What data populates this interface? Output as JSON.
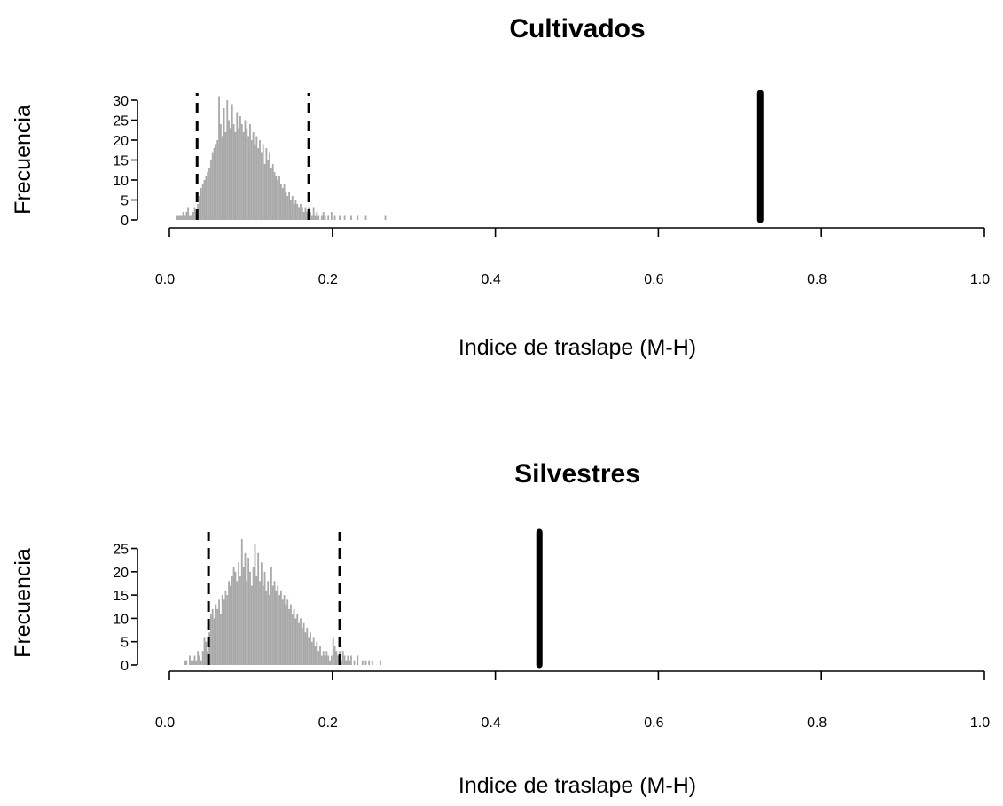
{
  "chart_data": [
    {
      "type": "bar",
      "title": "Cultivados",
      "xlabel": "Indice de traslape (M-H)",
      "ylabel": "Frecuencia",
      "xlim": [
        0,
        1
      ],
      "ylim": [
        0,
        30
      ],
      "xticks": [
        "0.0",
        "0.2",
        "0.4",
        "0.6",
        "0.8",
        "1.0"
      ],
      "yticks": [
        "0",
        "5",
        "10",
        "15",
        "20",
        "25",
        "30"
      ],
      "bin_width": 0.002,
      "bins": [
        [
          0.008,
          1
        ],
        [
          0.01,
          1
        ],
        [
          0.012,
          1
        ],
        [
          0.014,
          1
        ],
        [
          0.016,
          2
        ],
        [
          0.018,
          1
        ],
        [
          0.02,
          2
        ],
        [
          0.022,
          3
        ],
        [
          0.024,
          1
        ],
        [
          0.026,
          1
        ],
        [
          0.028,
          2
        ],
        [
          0.03,
          3
        ],
        [
          0.032,
          2
        ],
        [
          0.034,
          4
        ],
        [
          0.036,
          6
        ],
        [
          0.038,
          8
        ],
        [
          0.04,
          9
        ],
        [
          0.042,
          10
        ],
        [
          0.044,
          11
        ],
        [
          0.046,
          12
        ],
        [
          0.048,
          13
        ],
        [
          0.05,
          15
        ],
        [
          0.052,
          17
        ],
        [
          0.054,
          18
        ],
        [
          0.056,
          19
        ],
        [
          0.058,
          20
        ],
        [
          0.06,
          31
        ],
        [
          0.062,
          24
        ],
        [
          0.064,
          21
        ],
        [
          0.066,
          28
        ],
        [
          0.068,
          22
        ],
        [
          0.07,
          30
        ],
        [
          0.072,
          25
        ],
        [
          0.074,
          23
        ],
        [
          0.076,
          29
        ],
        [
          0.078,
          24
        ],
        [
          0.08,
          22
        ],
        [
          0.082,
          27
        ],
        [
          0.084,
          23
        ],
        [
          0.086,
          26
        ],
        [
          0.088,
          24
        ],
        [
          0.09,
          22
        ],
        [
          0.092,
          25
        ],
        [
          0.094,
          23
        ],
        [
          0.096,
          21
        ],
        [
          0.098,
          24
        ],
        [
          0.1,
          20
        ],
        [
          0.102,
          22
        ],
        [
          0.104,
          19
        ],
        [
          0.106,
          21
        ],
        [
          0.108,
          18
        ],
        [
          0.11,
          20
        ],
        [
          0.112,
          17
        ],
        [
          0.114,
          19
        ],
        [
          0.116,
          14
        ],
        [
          0.118,
          18
        ],
        [
          0.12,
          15
        ],
        [
          0.122,
          17
        ],
        [
          0.124,
          13
        ],
        [
          0.126,
          14
        ],
        [
          0.128,
          12
        ],
        [
          0.13,
          11
        ],
        [
          0.132,
          10
        ],
        [
          0.134,
          11
        ],
        [
          0.136,
          9
        ],
        [
          0.138,
          8
        ],
        [
          0.14,
          9
        ],
        [
          0.142,
          7
        ],
        [
          0.144,
          6
        ],
        [
          0.146,
          7
        ],
        [
          0.148,
          5
        ],
        [
          0.15,
          6
        ],
        [
          0.152,
          4
        ],
        [
          0.154,
          5
        ],
        [
          0.156,
          4
        ],
        [
          0.158,
          3
        ],
        [
          0.16,
          4
        ],
        [
          0.162,
          3
        ],
        [
          0.164,
          2
        ],
        [
          0.166,
          3
        ],
        [
          0.168,
          2
        ],
        [
          0.17,
          3
        ],
        [
          0.172,
          2
        ],
        [
          0.174,
          1
        ],
        [
          0.176,
          3
        ],
        [
          0.178,
          1
        ],
        [
          0.18,
          2
        ],
        [
          0.182,
          1
        ],
        [
          0.186,
          1
        ],
        [
          0.188,
          2
        ],
        [
          0.19,
          1
        ],
        [
          0.194,
          1
        ],
        [
          0.198,
          2
        ],
        [
          0.202,
          1
        ],
        [
          0.208,
          1
        ],
        [
          0.214,
          1
        ],
        [
          0.222,
          1
        ],
        [
          0.23,
          1
        ],
        [
          0.24,
          1
        ],
        [
          0.264,
          1
        ]
      ],
      "ci_lines": [
        0.034,
        0.171
      ],
      "observed": 0.725
    },
    {
      "type": "bar",
      "title": "Silvestres",
      "xlabel": "Indice de traslape (M-H)",
      "ylabel": "Frecuencia",
      "xlim": [
        0,
        1
      ],
      "ylim": [
        0,
        27
      ],
      "xticks": [
        "0.0",
        "0.2",
        "0.4",
        "0.6",
        "0.8",
        "1.0"
      ],
      "yticks": [
        "0",
        "5",
        "10",
        "15",
        "20",
        "25"
      ],
      "bin_width": 0.002,
      "bins": [
        [
          0.018,
          1
        ],
        [
          0.02,
          1
        ],
        [
          0.024,
          2
        ],
        [
          0.026,
          1
        ],
        [
          0.028,
          1
        ],
        [
          0.03,
          2
        ],
        [
          0.032,
          1
        ],
        [
          0.034,
          3
        ],
        [
          0.036,
          2
        ],
        [
          0.038,
          1
        ],
        [
          0.04,
          3
        ],
        [
          0.042,
          6
        ],
        [
          0.044,
          5
        ],
        [
          0.046,
          3
        ],
        [
          0.048,
          7
        ],
        [
          0.05,
          11
        ],
        [
          0.052,
          12
        ],
        [
          0.054,
          10
        ],
        [
          0.056,
          13
        ],
        [
          0.058,
          12
        ],
        [
          0.06,
          14
        ],
        [
          0.062,
          11
        ],
        [
          0.064,
          15
        ],
        [
          0.066,
          14
        ],
        [
          0.068,
          16
        ],
        [
          0.07,
          15
        ],
        [
          0.072,
          18
        ],
        [
          0.074,
          17
        ],
        [
          0.076,
          19
        ],
        [
          0.078,
          21
        ],
        [
          0.08,
          20
        ],
        [
          0.082,
          18
        ],
        [
          0.084,
          22
        ],
        [
          0.086,
          19
        ],
        [
          0.088,
          27
        ],
        [
          0.09,
          21
        ],
        [
          0.092,
          24
        ],
        [
          0.094,
          18
        ],
        [
          0.096,
          23
        ],
        [
          0.098,
          20
        ],
        [
          0.1,
          17
        ],
        [
          0.102,
          21
        ],
        [
          0.104,
          26
        ],
        [
          0.106,
          19
        ],
        [
          0.108,
          24
        ],
        [
          0.11,
          18
        ],
        [
          0.112,
          22
        ],
        [
          0.114,
          17
        ],
        [
          0.116,
          20
        ],
        [
          0.118,
          16
        ],
        [
          0.12,
          18
        ],
        [
          0.122,
          15
        ],
        [
          0.124,
          21
        ],
        [
          0.126,
          17
        ],
        [
          0.128,
          18
        ],
        [
          0.13,
          16
        ],
        [
          0.132,
          17
        ],
        [
          0.134,
          15
        ],
        [
          0.136,
          16
        ],
        [
          0.138,
          14
        ],
        [
          0.14,
          15
        ],
        [
          0.142,
          13
        ],
        [
          0.144,
          14
        ],
        [
          0.146,
          12
        ],
        [
          0.148,
          13
        ],
        [
          0.15,
          11
        ],
        [
          0.152,
          12
        ],
        [
          0.154,
          10
        ],
        [
          0.156,
          11
        ],
        [
          0.158,
          9
        ],
        [
          0.16,
          10
        ],
        [
          0.162,
          8
        ],
        [
          0.164,
          9
        ],
        [
          0.166,
          7
        ],
        [
          0.168,
          8
        ],
        [
          0.17,
          6
        ],
        [
          0.172,
          7
        ],
        [
          0.174,
          5
        ],
        [
          0.176,
          6
        ],
        [
          0.178,
          4
        ],
        [
          0.18,
          5
        ],
        [
          0.182,
          3
        ],
        [
          0.184,
          4
        ],
        [
          0.186,
          2
        ],
        [
          0.188,
          3
        ],
        [
          0.19,
          2
        ],
        [
          0.192,
          3
        ],
        [
          0.194,
          2
        ],
        [
          0.196,
          1
        ],
        [
          0.198,
          2
        ],
        [
          0.2,
          6
        ],
        [
          0.202,
          4
        ],
        [
          0.204,
          3
        ],
        [
          0.206,
          2
        ],
        [
          0.208,
          3
        ],
        [
          0.21,
          1
        ],
        [
          0.212,
          3
        ],
        [
          0.214,
          2
        ],
        [
          0.216,
          1
        ],
        [
          0.218,
          2
        ],
        [
          0.22,
          1
        ],
        [
          0.222,
          2
        ],
        [
          0.226,
          1
        ],
        [
          0.23,
          2
        ],
        [
          0.236,
          1
        ],
        [
          0.24,
          1
        ],
        [
          0.244,
          1
        ],
        [
          0.248,
          1
        ],
        [
          0.258,
          1
        ]
      ],
      "ci_lines": [
        0.048,
        0.209
      ],
      "observed": 0.454
    }
  ]
}
